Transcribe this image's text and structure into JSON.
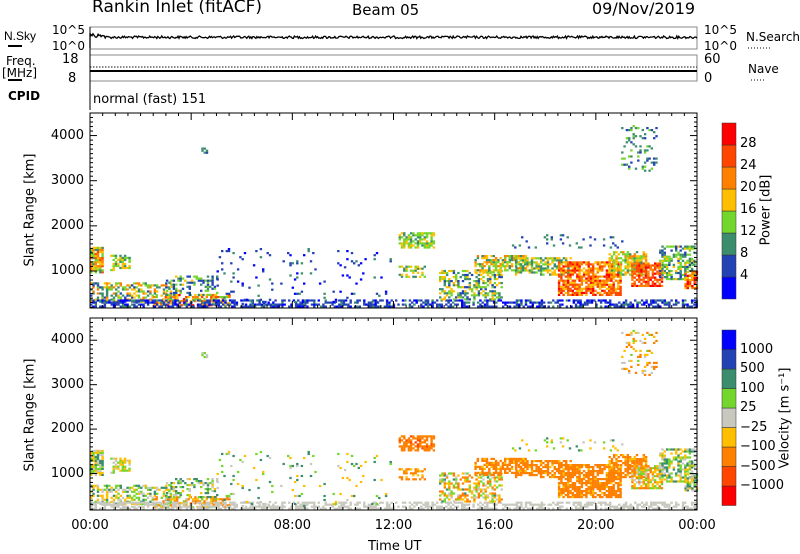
{
  "header": {
    "station": "Rankin Inlet (fitACF)",
    "beam": "Beam 05",
    "date": "09/Nov/2019"
  },
  "noise_panel": {
    "left_label": "N.Sky",
    "left_ticks": [
      "10^5",
      "10^0"
    ],
    "right_ticks": [
      "10^5",
      "10^0"
    ],
    "right_label": "N.Search"
  },
  "freq_panel": {
    "left_label_1": "Freq.",
    "left_label_2": "[MHz]",
    "left_ticks": [
      "18",
      "8"
    ],
    "right_ticks": [
      "60",
      "0"
    ],
    "right_label": "Nave"
  },
  "cpid": {
    "label": "CPID",
    "value": "normal (fast) 151"
  },
  "colors": {
    "power": [
      "#0000ff",
      "#2342b4",
      "#3c8c6e",
      "#74d62c",
      "#ffbf00",
      "#ff8000",
      "#ff4600",
      "#ff0000"
    ],
    "velocity": [
      "#ff0000",
      "#ff4600",
      "#ff8000",
      "#ffbf00",
      "#c8c8be",
      "#74d62c",
      "#3c8c6e",
      "#2342b4",
      "#0000ff"
    ]
  },
  "chart_data": [
    {
      "type": "heatmap",
      "title": "Power",
      "ylabel": "Slant Range [km]",
      "xlabel": "",
      "ylim": [
        180,
        4500
      ],
      "xlim": [
        0,
        24
      ],
      "yticks": [
        "1000",
        "2000",
        "3000",
        "4000"
      ],
      "colorbar": {
        "label": "Power [dB]",
        "ticks": [
          "4",
          "8",
          "12",
          "16",
          "20",
          "24",
          "28"
        ]
      }
    },
    {
      "type": "heatmap",
      "title": "Velocity",
      "ylabel": "Slant Range [km]",
      "xlabel": "Time UT",
      "ylim": [
        180,
        4500
      ],
      "xlim": [
        0,
        24
      ],
      "yticks": [
        "1000",
        "2000",
        "3000",
        "4000"
      ],
      "xticks": [
        "00:00",
        "04:00",
        "08:00",
        "12:00",
        "16:00",
        "20:00",
        "00:00"
      ],
      "colorbar": {
        "label": "Velocity [m s⁻¹]",
        "ticks": [
          "1000",
          "500",
          "100",
          "25",
          "−25",
          "−100",
          "−500",
          "−1000"
        ]
      }
    }
  ],
  "echo_regions": [
    {
      "t": [
        0,
        0.5
      ],
      "r": [
        950,
        1500
      ],
      "p": [
        10,
        26
      ],
      "v": [
        -100,
        150
      ],
      "d": 0.8
    },
    {
      "t": [
        0.8,
        1.6
      ],
      "r": [
        1000,
        1350
      ],
      "p": [
        10,
        20
      ],
      "v": [
        -100,
        100
      ],
      "d": 0.6
    },
    {
      "t": [
        0,
        3.2
      ],
      "r": [
        300,
        750
      ],
      "p": [
        6,
        24
      ],
      "v": [
        -80,
        150
      ],
      "d": 0.45
    },
    {
      "t": [
        2.5,
        5.5
      ],
      "r": [
        220,
        480
      ],
      "p": [
        14,
        30
      ],
      "v": [
        -300,
        100
      ],
      "d": 0.6
    },
    {
      "t": [
        3,
        5
      ],
      "r": [
        450,
        900
      ],
      "p": [
        4,
        18
      ],
      "v": [
        -50,
        200
      ],
      "d": 0.35
    },
    {
      "t": [
        0,
        24
      ],
      "r": [
        190,
        330
      ],
      "p": [
        2,
        9
      ],
      "v": [
        -20,
        20
      ],
      "d": 0.55
    },
    {
      "t": [
        4.4,
        4.6
      ],
      "r": [
        3600,
        3720
      ],
      "p": [
        6,
        12
      ],
      "v": [
        0,
        50
      ],
      "d": 0.8
    },
    {
      "t": [
        5,
        12
      ],
      "r": [
        250,
        1500
      ],
      "p": [
        2,
        10
      ],
      "v": [
        -100,
        200
      ],
      "d": 0.05
    },
    {
      "t": [
        12.2,
        13.6
      ],
      "r": [
        1500,
        1850
      ],
      "p": [
        10,
        18
      ],
      "v": [
        -600,
        -100
      ],
      "d": 0.7
    },
    {
      "t": [
        12.2,
        13.2
      ],
      "r": [
        850,
        1100
      ],
      "p": [
        8,
        20
      ],
      "v": [
        -300,
        -30
      ],
      "d": 0.5
    },
    {
      "t": [
        13.8,
        16.3
      ],
      "r": [
        350,
        1000
      ],
      "p": [
        6,
        20
      ],
      "v": [
        -200,
        120
      ],
      "d": 0.5
    },
    {
      "t": [
        15.2,
        17.2
      ],
      "r": [
        950,
        1350
      ],
      "p": [
        10,
        22
      ],
      "v": [
        -400,
        -50
      ],
      "d": 0.6
    },
    {
      "t": [
        16.8,
        19
      ],
      "r": [
        900,
        1300
      ],
      "p": [
        8,
        20
      ],
      "v": [
        -400,
        -60
      ],
      "d": 0.6
    },
    {
      "t": [
        18.5,
        21
      ],
      "r": [
        450,
        1200
      ],
      "p": [
        16,
        30
      ],
      "v": [
        -450,
        -60
      ],
      "d": 0.75
    },
    {
      "t": [
        20.5,
        22
      ],
      "r": [
        900,
        1400
      ],
      "p": [
        10,
        22
      ],
      "v": [
        -300,
        -40
      ],
      "d": 0.6
    },
    {
      "t": [
        21.4,
        22.6
      ],
      "r": [
        650,
        1150
      ],
      "p": [
        20,
        30
      ],
      "v": [
        -200,
        100
      ],
      "d": 0.75
    },
    {
      "t": [
        22.5,
        23.9
      ],
      "r": [
        800,
        1550
      ],
      "p": [
        6,
        18
      ],
      "v": [
        -100,
        200
      ],
      "d": 0.55
    },
    {
      "t": [
        23.5,
        24
      ],
      "r": [
        600,
        1000
      ],
      "p": [
        16,
        30
      ],
      "v": [
        -100,
        150
      ],
      "d": 0.7
    },
    {
      "t": [
        21,
        22.4
      ],
      "r": [
        3200,
        4200
      ],
      "p": [
        6,
        14
      ],
      "v": [
        -200,
        50
      ],
      "d": 0.2
    },
    {
      "t": [
        16.5,
        21
      ],
      "r": [
        1500,
        1800
      ],
      "p": [
        4,
        12
      ],
      "v": [
        -100,
        150
      ],
      "d": 0.08
    }
  ]
}
